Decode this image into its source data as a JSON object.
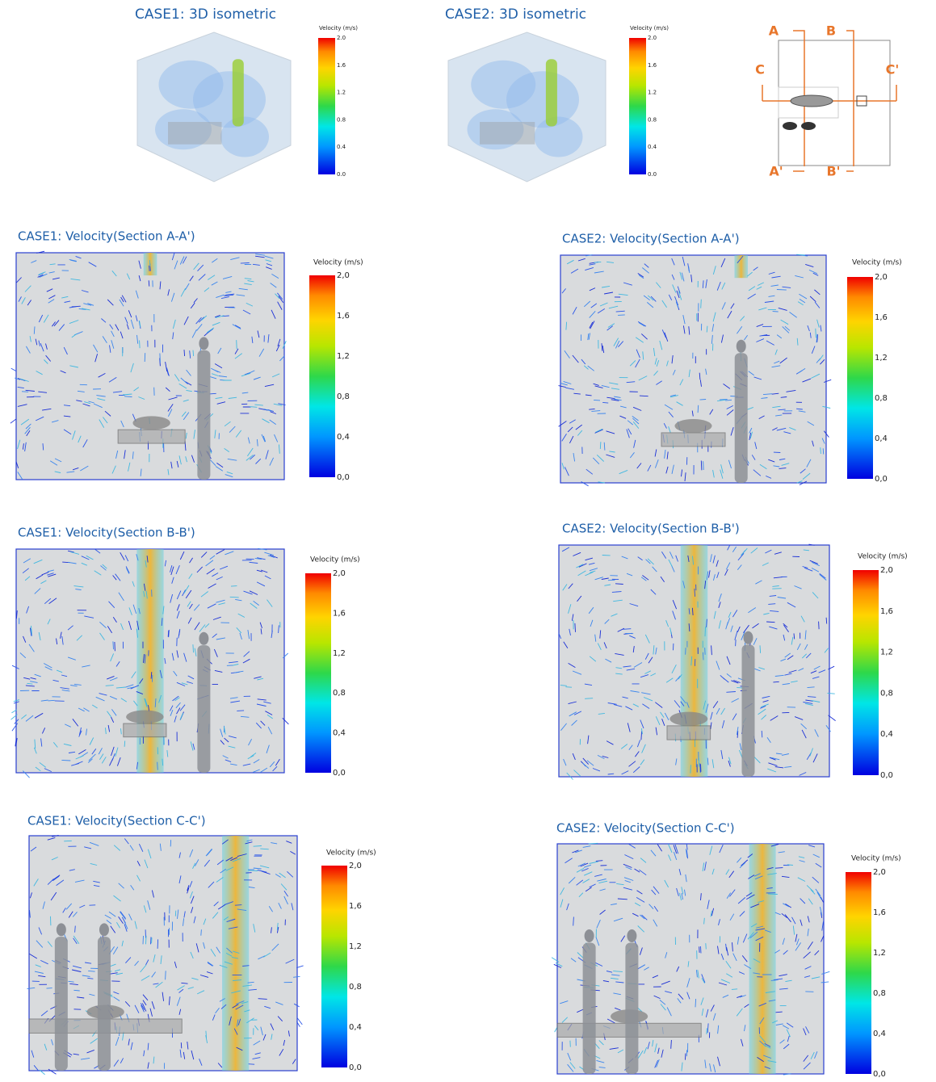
{
  "figure": {
    "panels": [
      {
        "title": "CASE1: 3D isometric",
        "colorbar": {
          "label": "Velocity (m/s)",
          "ticks": [
            "2.0",
            "1.6",
            "1.2",
            "0.8",
            "0.4",
            "0.0"
          ]
        }
      },
      {
        "title": "CASE2: 3D isometric",
        "colorbar": {
          "label": "Velocity (m/s)",
          "ticks": [
            "2.0",
            "1.6",
            "1.2",
            "0.8",
            "0.4",
            "0.0"
          ]
        }
      },
      {
        "title": "CASE1: Velocity(Section A-A')",
        "colorbar": {
          "label": "Velocity (m/s)",
          "ticks": [
            "2,0",
            "1,6",
            "1,2",
            "0,8",
            "0,4",
            "0,0"
          ]
        }
      },
      {
        "title": "CASE2: Velocity(Section A-A')",
        "colorbar": {
          "label": "Velocity (m/s)",
          "ticks": [
            "2,0",
            "1,6",
            "1,2",
            "0,8",
            "0,4",
            "0,0"
          ]
        }
      },
      {
        "title": "CASE1: Velocity(Section B-B')",
        "colorbar": {
          "label": "Velocity (m/s)",
          "ticks": [
            "2,0",
            "1,6",
            "1,2",
            "0,8",
            "0,4",
            "0,0"
          ]
        }
      },
      {
        "title": "CASE2: Velocity(Section B-B')",
        "colorbar": {
          "label": "Velocity (m/s)",
          "ticks": [
            "2,0",
            "1,6",
            "1,2",
            "0,8",
            "0,4",
            "0,0"
          ]
        }
      },
      {
        "title": "CASE1: Velocity(Section C-C')",
        "colorbar": {
          "label": "Velocity (m/s)",
          "ticks": [
            "2,0",
            "1,6",
            "1,2",
            "0,8",
            "0,4",
            "0,0"
          ]
        }
      },
      {
        "title": "CASE2: Velocity(Section C-C')",
        "colorbar": {
          "label": "Velocity (m/s)",
          "ticks": [
            "2,0",
            "1,6",
            "1,2",
            "0,8",
            "0,4",
            "0,0"
          ]
        }
      }
    ],
    "key": {
      "labels": [
        "A",
        "B",
        "C",
        "C'",
        "A'",
        "B'"
      ]
    }
  }
}
